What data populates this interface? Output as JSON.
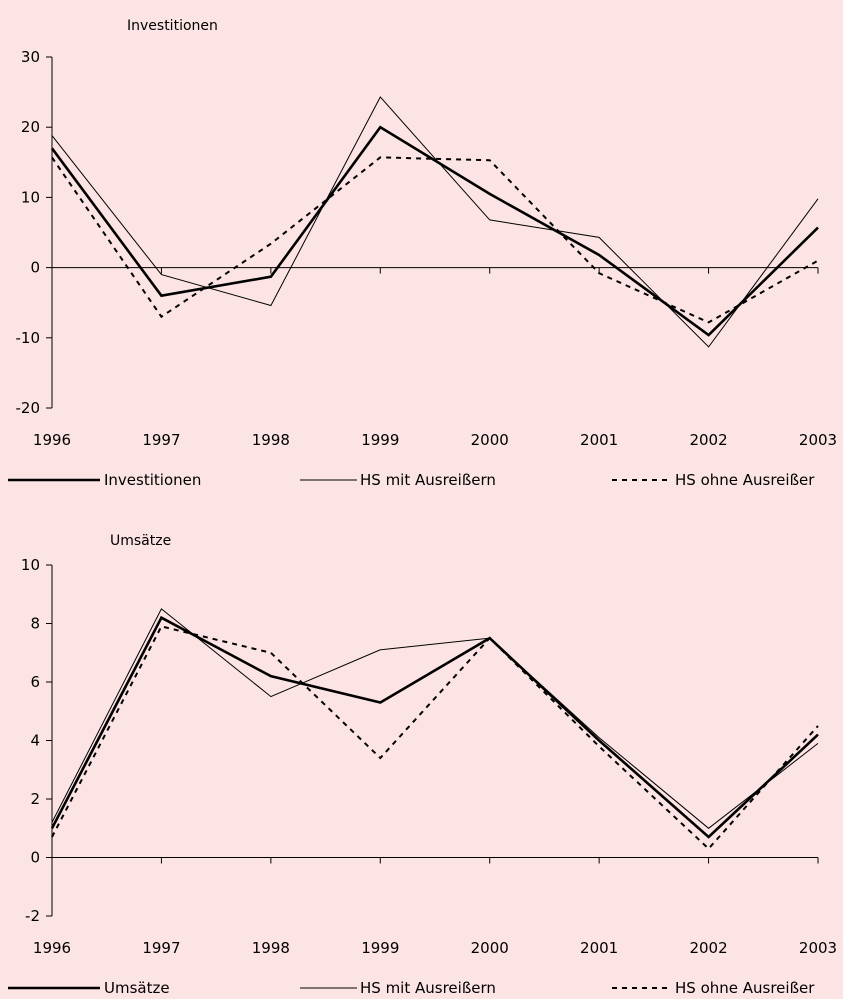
{
  "chart_data": [
    {
      "type": "line",
      "title": "Investitionen",
      "x": [
        "1996",
        "1997",
        "1998",
        "1999",
        "2000",
        "2001",
        "2002",
        "2003"
      ],
      "ylim": [
        -20,
        30
      ],
      "yticks": [
        "30",
        "20",
        "10",
        "0",
        "-10",
        "-20"
      ],
      "grid": false,
      "legend_position": "bottom",
      "series": [
        {
          "name": "Investitionen",
          "style": "thick",
          "values": [
            17,
            -4,
            -1.3,
            20,
            10.5,
            1.8,
            -9.6,
            5.7
          ]
        },
        {
          "name": "HS mit Ausreißern",
          "style": "thin",
          "values": [
            18.8,
            -1,
            -5.4,
            24.3,
            6.8,
            4.3,
            -11.3,
            9.8
          ]
        },
        {
          "name": "HS ohne Ausreißer",
          "style": "dashed",
          "values": [
            15.7,
            -7,
            3.4,
            15.7,
            15.3,
            -0.8,
            -7.8,
            1
          ]
        }
      ]
    },
    {
      "type": "line",
      "title": "Umsätze",
      "x": [
        "1996",
        "1997",
        "1998",
        "1999",
        "2000",
        "2001",
        "2002",
        "2003"
      ],
      "ylim": [
        -2,
        10
      ],
      "yticks": [
        "10",
        "8",
        "6",
        "4",
        "2",
        "0",
        "-2"
      ],
      "grid": false,
      "legend_position": "bottom",
      "series": [
        {
          "name": "Umsätze",
          "style": "thick",
          "values": [
            1,
            8.2,
            6.2,
            5.3,
            7.5,
            4,
            0.7,
            4.2
          ]
        },
        {
          "name": "HS mit Ausreißern",
          "style": "thin",
          "values": [
            1.2,
            8.5,
            5.5,
            7.1,
            7.5,
            4.1,
            1,
            3.9
          ]
        },
        {
          "name": "HS ohne Ausreißer",
          "style": "dashed",
          "values": [
            0.7,
            7.9,
            7,
            3.4,
            7.5,
            3.8,
            0.3,
            4.5
          ]
        }
      ]
    }
  ]
}
